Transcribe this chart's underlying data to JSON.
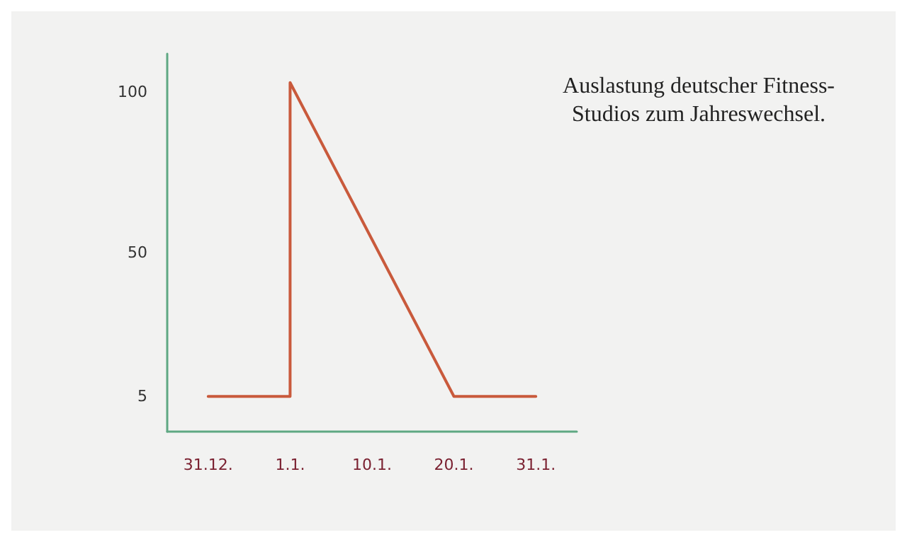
{
  "chart_data": {
    "type": "line",
    "title": "Auslastung deutscher Fitness-\nStudios zum Jahreswechsel.",
    "categories": [
      "31.12.",
      "1.1.",
      "10.1.",
      "20.1.",
      "31.1."
    ],
    "series": [
      {
        "color": "#c95a3c",
        "x": [
          "31.12.",
          "1.1.",
          "1.1.",
          "20.1.",
          "31.1."
        ],
        "values": [
          5,
          5,
          103,
          5,
          5
        ]
      }
    ],
    "ylim": [
      -6,
      112
    ],
    "yticks": [
      5,
      50,
      100
    ],
    "grid": false,
    "marker": "none",
    "line_style": "solid"
  }
}
